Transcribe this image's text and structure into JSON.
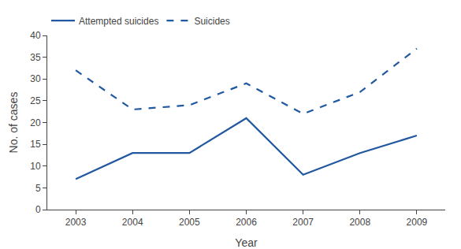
{
  "chart_data": {
    "type": "line",
    "x": [
      2003,
      2004,
      2005,
      2006,
      2007,
      2008,
      2009
    ],
    "series": [
      {
        "name": "Attempted suicides",
        "color": "#2158A0",
        "line_style": "solid",
        "values": [
          7,
          13,
          13,
          21,
          8,
          13,
          17
        ]
      },
      {
        "name": "Suicides",
        "color": "#2158A0",
        "line_style": "dashed",
        "values": [
          32,
          23,
          24,
          29,
          22,
          27,
          37
        ]
      }
    ],
    "xlabel": "Year",
    "ylabel": "No. of cases",
    "xlim": [
      2002.5,
      2009.5
    ],
    "xticks": [
      2003,
      2004,
      2005,
      2006,
      2007,
      2008,
      2009
    ],
    "ylim": [
      0,
      40
    ],
    "yticks": [
      0,
      5,
      10,
      15,
      20,
      25,
      30,
      35,
      40
    ],
    "grid": false,
    "legend": "upper left"
  }
}
